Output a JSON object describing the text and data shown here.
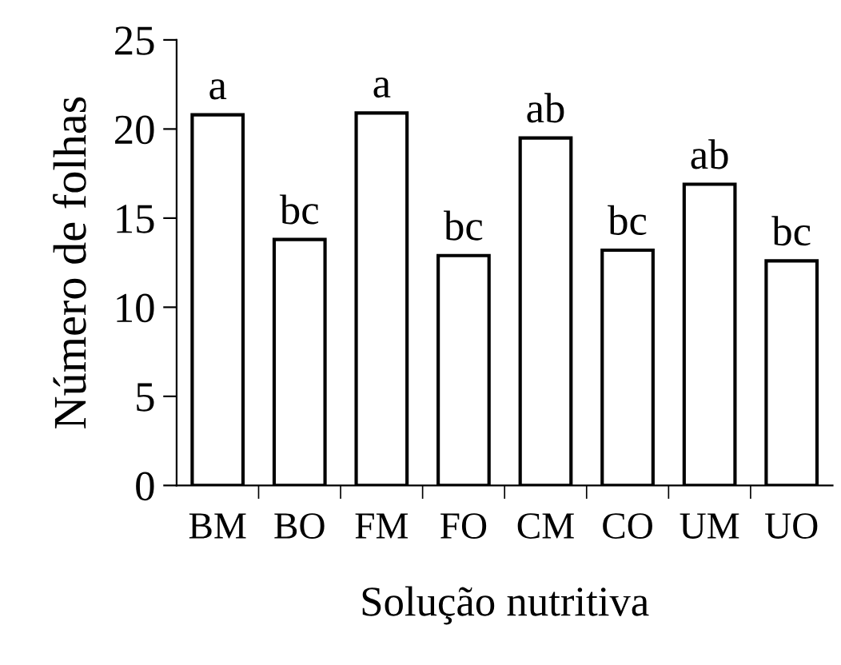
{
  "chart_data": {
    "type": "bar",
    "xlabel": "Solução nutritiva",
    "ylabel": "Número de folhas",
    "categories": [
      "BM",
      "BO",
      "FM",
      "FO",
      "CM",
      "CO",
      "UM",
      "UO"
    ],
    "values": [
      20.8,
      13.8,
      20.9,
      12.9,
      19.5,
      13.2,
      16.9,
      12.6
    ],
    "color": "#ffffff",
    "annotations": [
      {
        "text": "a",
        "x": "BM",
        "y": 20.8
      },
      {
        "text": "bc",
        "x": "BO",
        "y": 13.8
      },
      {
        "text": "a",
        "x": "FM",
        "y": 20.9
      },
      {
        "text": "bc",
        "x": "FO",
        "y": 12.9
      },
      {
        "text": "ab",
        "x": "CM",
        "y": 19.5
      },
      {
        "text": "bc",
        "x": "CO",
        "y": 13.2
      },
      {
        "text": "ab",
        "x": "UM",
        "y": 16.9
      },
      {
        "text": "bc",
        "x": "UO",
        "y": 12.6
      }
    ],
    "ylim": [
      0,
      25
    ],
    "yticks": [
      0,
      5,
      10,
      15,
      20,
      25
    ],
    "grid": false,
    "legend": false
  }
}
